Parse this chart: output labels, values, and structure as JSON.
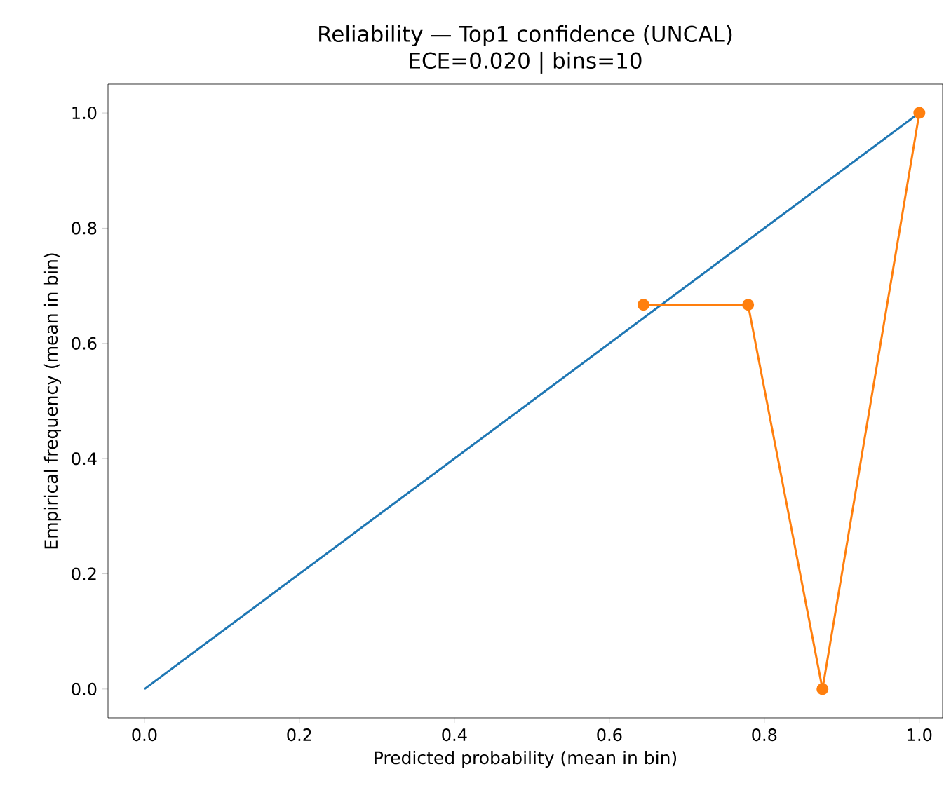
{
  "chart_data": {
    "type": "line",
    "title": "Reliability — Top1 confidence (UNCAL)",
    "subtitle": "ECE=0.020 | bins=10",
    "xlabel": "Predicted probability (mean in bin)",
    "ylabel": "Empirical frequency (mean in bin)",
    "xlim": [
      -0.047,
      1.03
    ],
    "ylim": [
      -0.05,
      1.05
    ],
    "xticks": [
      {
        "value": 0,
        "label": "0.0"
      },
      0.2,
      0.4,
      0.6,
      0.8,
      {
        "value": 1,
        "label": "1.0"
      }
    ],
    "yticks": [
      {
        "value": 0,
        "label": "0.0"
      },
      0.2,
      0.4,
      0.6,
      0.8,
      {
        "value": 1,
        "label": "1.0"
      }
    ],
    "grid": false,
    "series": [
      {
        "color": "#1f77b4",
        "x": [
          0,
          1
        ],
        "values": [
          0,
          1
        ],
        "marker": "none"
      },
      {
        "color": "#ff7f0e",
        "x": [
          0.644,
          0.779,
          0.875,
          1.0
        ],
        "values": [
          0.667,
          0.667,
          0,
          1
        ],
        "marker": "circle"
      }
    ]
  }
}
